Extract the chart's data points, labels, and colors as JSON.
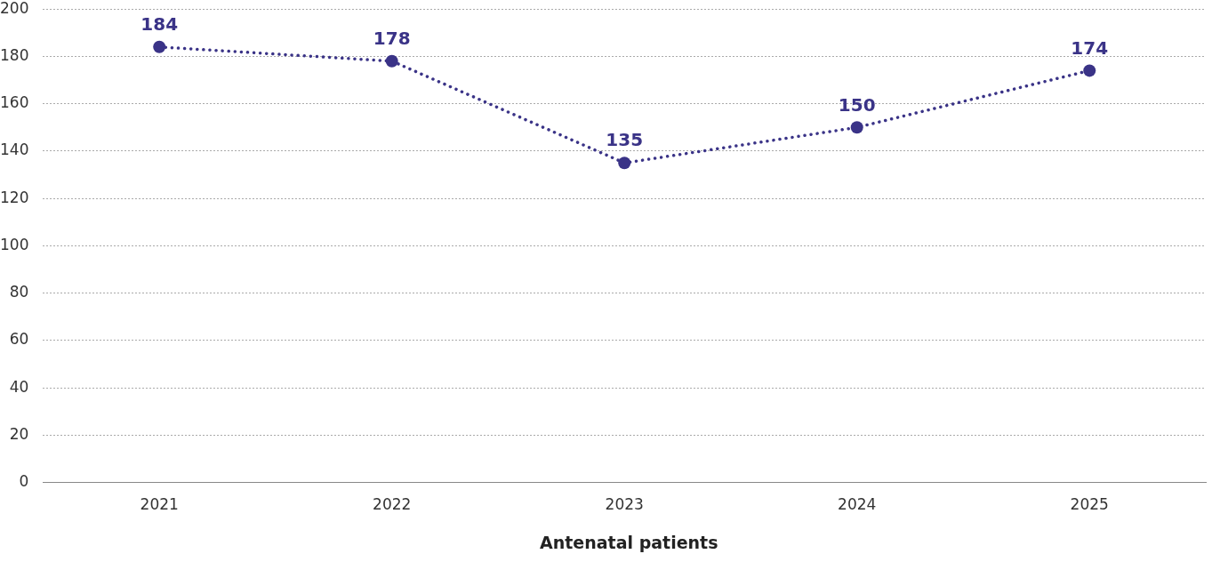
{
  "chart_data": {
    "type": "line",
    "categories": [
      "2021",
      "2022",
      "2023",
      "2024",
      "2025"
    ],
    "series": [
      {
        "name": "Antenatal patients",
        "color": "#3a3387",
        "values": [
          184,
          178,
          135,
          150,
          174
        ]
      }
    ],
    "ylim": [
      0,
      200
    ],
    "yticks": [
      0,
      20,
      40,
      60,
      80,
      100,
      120,
      140,
      160,
      180,
      200
    ],
    "grid": "y",
    "legend": "bottom",
    "marker": "circle",
    "line_style": "dotted",
    "data_labels": true
  }
}
